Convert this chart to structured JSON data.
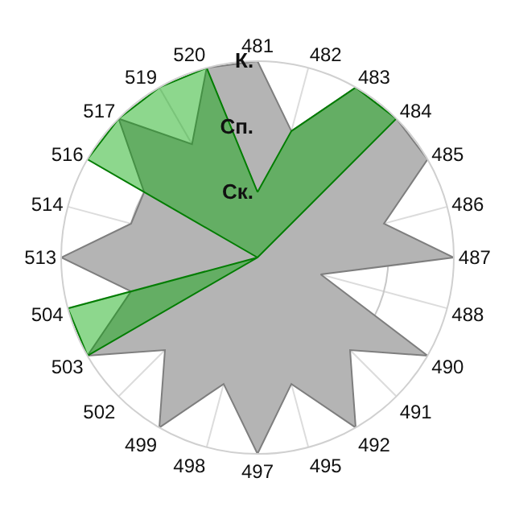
{
  "chart_data": {
    "type": "radar",
    "categories": [
      "481",
      "482",
      "483",
      "484",
      "485",
      "486",
      "487",
      "488",
      "490",
      "491",
      "492",
      "495",
      "497",
      "498",
      "499",
      "502",
      "503",
      "504",
      "513",
      "514",
      "516",
      "517",
      "519",
      "520"
    ],
    "series": [
      {
        "color": "#b4b4b4",
        "values": [
          3,
          2,
          3,
          3,
          3,
          2,
          3,
          1,
          3,
          2,
          3,
          2,
          3,
          2,
          3,
          2,
          3,
          2,
          3,
          2,
          2,
          3,
          2,
          3
        ]
      },
      {
        "color": "#03a603",
        "values": [
          1,
          2,
          3,
          3,
          0,
          0,
          0,
          0,
          0,
          0,
          0,
          0,
          0,
          0,
          0,
          0,
          3,
          3,
          0,
          0,
          3,
          3,
          3,
          3
        ]
      }
    ],
    "ylim": [
      0,
      3
    ],
    "yticks": [
      {
        "value": 1,
        "label": "Ск."
      },
      {
        "value": 2,
        "label": "Сп."
      },
      {
        "value": 3,
        "label": "К."
      }
    ],
    "grid": true,
    "marker": "none"
  }
}
